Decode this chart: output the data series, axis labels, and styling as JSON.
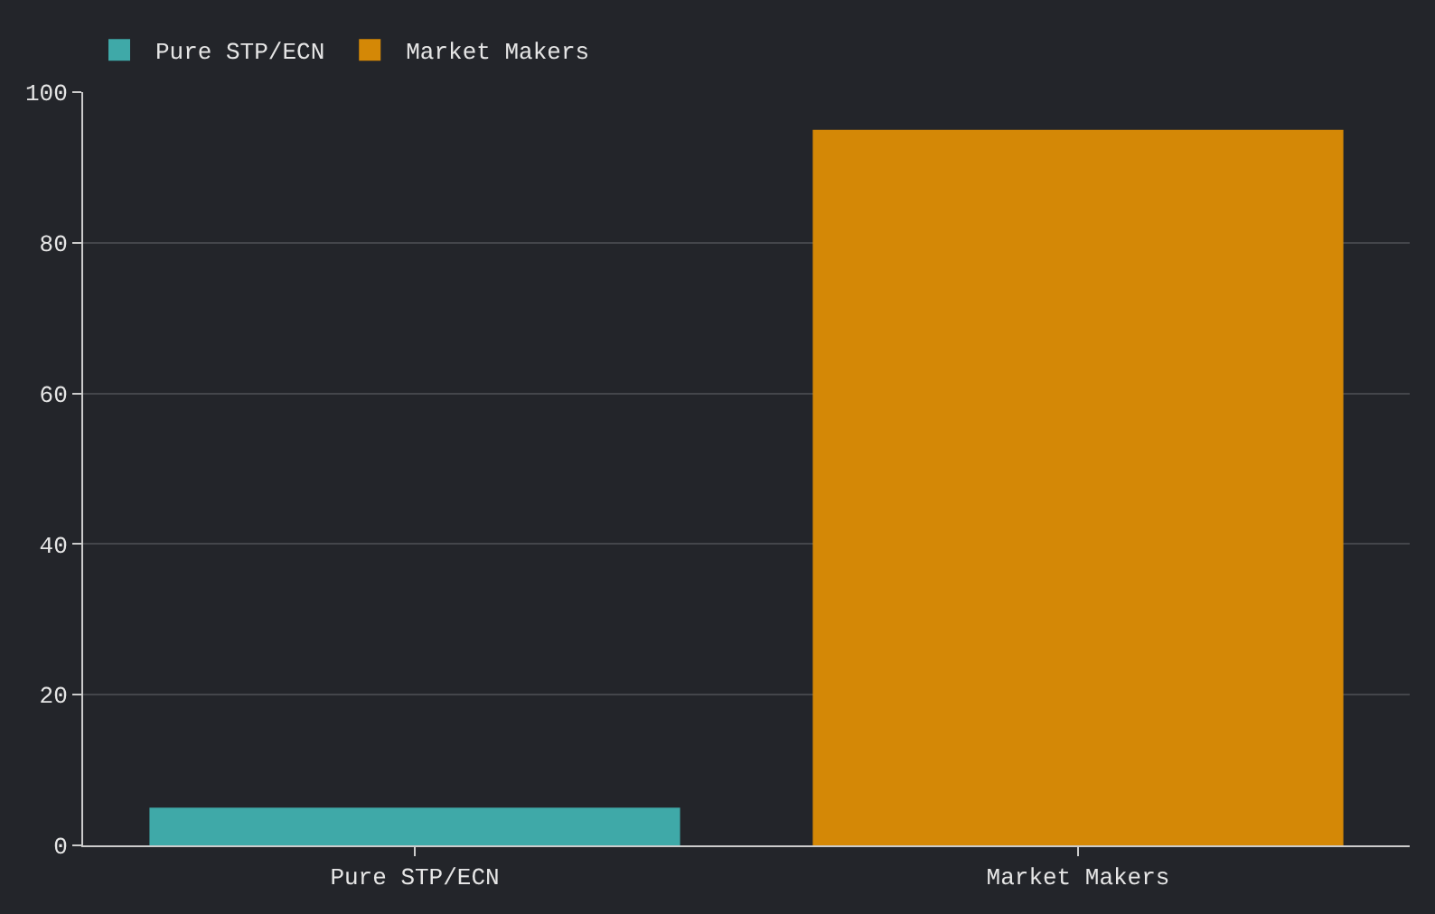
{
  "chart_data": {
    "type": "bar",
    "categories": [
      "Pure STP/ECN",
      "Market Makers"
    ],
    "series": [
      {
        "name": "Pure STP/ECN",
        "color": "#3fa9a8",
        "values": [
          5,
          null
        ]
      },
      {
        "name": "Market Makers",
        "color": "#d48806",
        "values": [
          null,
          95
        ]
      }
    ],
    "ylim": [
      0,
      100
    ],
    "yticks": [
      0,
      20,
      40,
      60,
      80,
      100
    ],
    "grid": "y",
    "legend": "top left"
  }
}
